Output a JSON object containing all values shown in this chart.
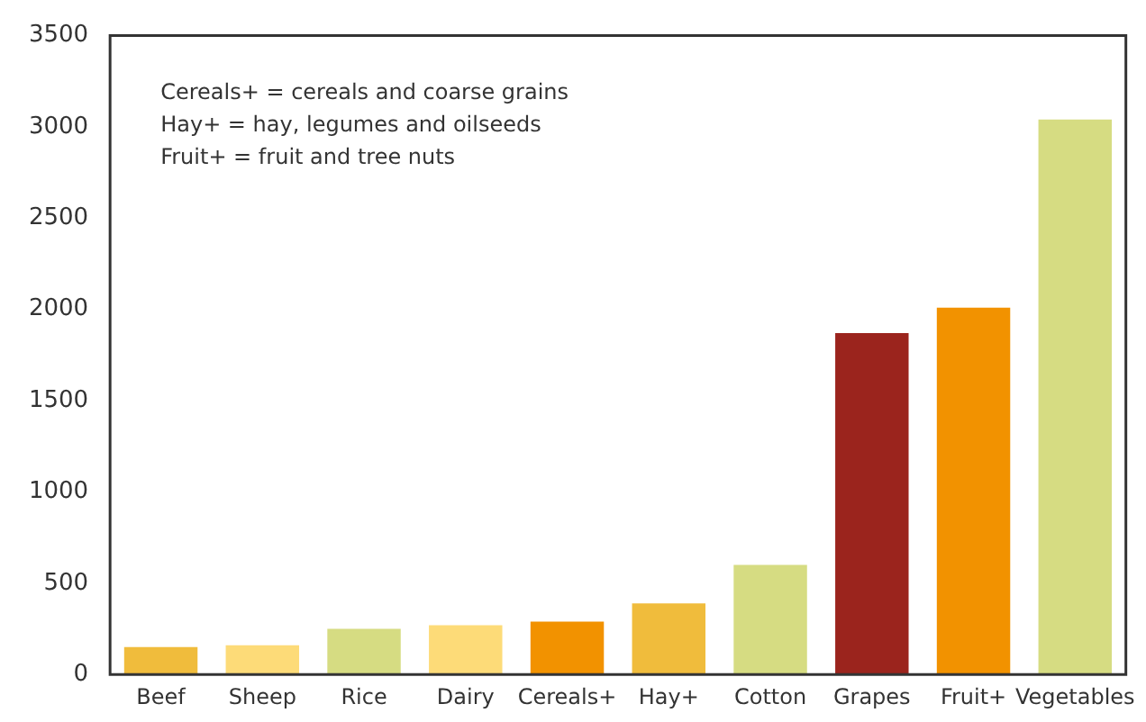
{
  "chart_data": {
    "type": "bar",
    "categories": [
      "Beef",
      "Sheep",
      "Rice",
      "Dairy",
      "Cereals+",
      "Hay+",
      "Cotton",
      "Grapes",
      "Fruit+",
      "Vegetables"
    ],
    "values": [
      150,
      160,
      250,
      270,
      290,
      390,
      600,
      1870,
      2010,
      3040
    ],
    "colors": [
      "#f0bc3c",
      "#fddb78",
      "#d6dc82",
      "#fddb78",
      "#f29200",
      "#f0bc3c",
      "#d6dc82",
      "#9b241d",
      "#f29200",
      "#d6dc82"
    ],
    "ylim": [
      0,
      3500
    ],
    "yticks": [
      0,
      500,
      1000,
      1500,
      2000,
      2500,
      3000,
      3500
    ],
    "grid": false,
    "legend": false,
    "annotations": [
      "Cereals+ = cereals and coarse grains",
      "Hay+ = hay, legumes and oilseeds",
      "Fruit+ = fruit and tree nuts"
    ]
  }
}
